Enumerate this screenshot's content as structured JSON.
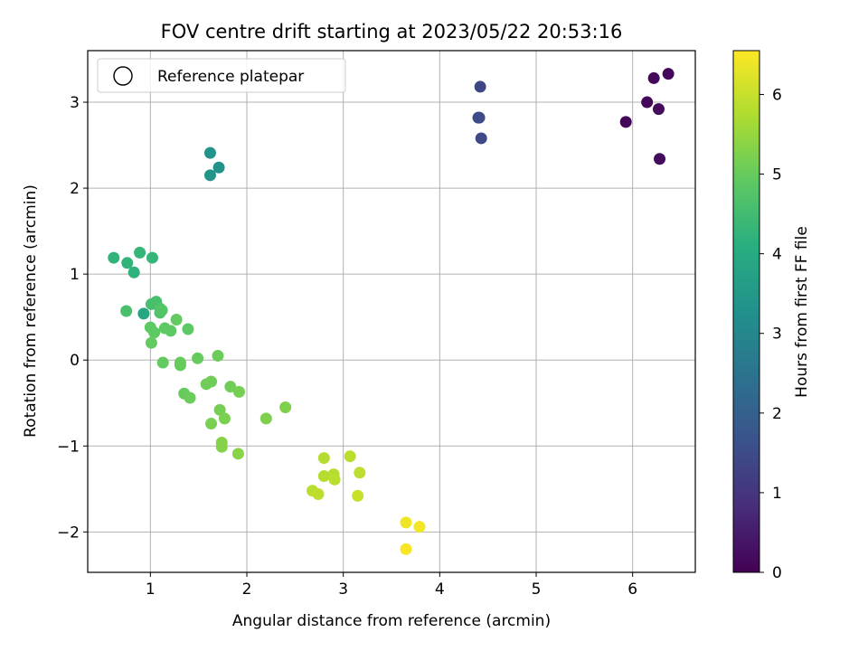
{
  "chart_data": {
    "type": "scatter",
    "title": "FOV centre drift starting at 2023/05/22 20:53:16",
    "xlabel": "Angular distance from reference (arcmin)",
    "ylabel": "Rotation from reference (arcmin)",
    "xlim": [
      0.35,
      6.65
    ],
    "ylim": [
      -2.47,
      3.6
    ],
    "xticks": [
      1,
      2,
      3,
      4,
      5,
      6
    ],
    "yticks": [
      -2,
      -1,
      0,
      1,
      2,
      3
    ],
    "grid": true,
    "legend": {
      "placement": "top-left",
      "entries": [
        "Reference platepar"
      ]
    },
    "colorbar": {
      "label": "Hours from first FF file",
      "range": [
        0,
        6.55
      ],
      "ticks": [
        0,
        1,
        2,
        3,
        4,
        5,
        6
      ],
      "colormap": "viridis"
    },
    "points": [
      {
        "x": 5.93,
        "y": 2.77,
        "c": 0.1
      },
      {
        "x": 6.15,
        "y": 3.0,
        "c": 0.1
      },
      {
        "x": 6.22,
        "y": 3.28,
        "c": 0.15
      },
      {
        "x": 6.27,
        "y": 2.92,
        "c": 0.2
      },
      {
        "x": 6.28,
        "y": 2.34,
        "c": 0.2
      },
      {
        "x": 6.37,
        "y": 3.33,
        "c": 0.1
      },
      {
        "x": 4.4,
        "y": 2.82,
        "c": 1.45
      },
      {
        "x": 4.42,
        "y": 3.18,
        "c": 1.4
      },
      {
        "x": 4.43,
        "y": 2.58,
        "c": 1.45
      },
      {
        "x": 4.41,
        "y": 2.82,
        "c": 1.5
      },
      {
        "x": 1.62,
        "y": 2.41,
        "c": 3.35
      },
      {
        "x": 1.62,
        "y": 2.15,
        "c": 3.4
      },
      {
        "x": 1.71,
        "y": 2.24,
        "c": 3.3
      },
      {
        "x": 0.62,
        "y": 1.19,
        "c": 4.25
      },
      {
        "x": 0.76,
        "y": 1.13,
        "c": 4.25
      },
      {
        "x": 0.83,
        "y": 1.02,
        "c": 4.2
      },
      {
        "x": 0.89,
        "y": 1.25,
        "c": 4.3
      },
      {
        "x": 1.02,
        "y": 1.19,
        "c": 4.3
      },
      {
        "x": 0.93,
        "y": 0.54,
        "c": 3.9
      },
      {
        "x": 0.75,
        "y": 0.57,
        "c": 4.6
      },
      {
        "x": 1.01,
        "y": 0.65,
        "c": 4.6
      },
      {
        "x": 1.06,
        "y": 0.68,
        "c": 4.6
      },
      {
        "x": 1.1,
        "y": 0.6,
        "c": 4.7
      },
      {
        "x": 1.1,
        "y": 0.55,
        "c": 4.7
      },
      {
        "x": 1.12,
        "y": 0.58,
        "c": 4.75
      },
      {
        "x": 1.0,
        "y": 0.38,
        "c": 4.9
      },
      {
        "x": 1.04,
        "y": 0.32,
        "c": 4.9
      },
      {
        "x": 1.01,
        "y": 0.2,
        "c": 4.95
      },
      {
        "x": 1.15,
        "y": 0.37,
        "c": 4.9
      },
      {
        "x": 1.21,
        "y": 0.34,
        "c": 4.9
      },
      {
        "x": 1.27,
        "y": 0.47,
        "c": 4.95
      },
      {
        "x": 1.39,
        "y": 0.36,
        "c": 4.9
      },
      {
        "x": 1.13,
        "y": -0.03,
        "c": 4.95
      },
      {
        "x": 1.31,
        "y": -0.03,
        "c": 5.0
      },
      {
        "x": 1.31,
        "y": -0.06,
        "c": 5.0
      },
      {
        "x": 1.49,
        "y": 0.02,
        "c": 5.0
      },
      {
        "x": 1.7,
        "y": 0.05,
        "c": 5.05
      },
      {
        "x": 1.35,
        "y": -0.39,
        "c": 5.0
      },
      {
        "x": 1.41,
        "y": -0.44,
        "c": 5.05
      },
      {
        "x": 1.58,
        "y": -0.28,
        "c": 5.1
      },
      {
        "x": 1.63,
        "y": -0.25,
        "c": 5.1
      },
      {
        "x": 1.83,
        "y": -0.31,
        "c": 5.1
      },
      {
        "x": 1.92,
        "y": -0.37,
        "c": 5.15
      },
      {
        "x": 1.72,
        "y": -0.58,
        "c": 5.15
      },
      {
        "x": 1.77,
        "y": -0.68,
        "c": 5.2
      },
      {
        "x": 1.63,
        "y": -0.74,
        "c": 5.2
      },
      {
        "x": 2.2,
        "y": -0.68,
        "c": 5.25
      },
      {
        "x": 2.4,
        "y": -0.55,
        "c": 5.25
      },
      {
        "x": 1.74,
        "y": -0.96,
        "c": 5.3
      },
      {
        "x": 1.74,
        "y": -1.01,
        "c": 5.3
      },
      {
        "x": 1.91,
        "y": -1.09,
        "c": 5.35
      },
      {
        "x": 2.8,
        "y": -1.14,
        "c": 5.8
      },
      {
        "x": 3.07,
        "y": -1.12,
        "c": 5.85
      },
      {
        "x": 2.8,
        "y": -1.35,
        "c": 5.8
      },
      {
        "x": 2.9,
        "y": -1.33,
        "c": 5.8
      },
      {
        "x": 2.91,
        "y": -1.39,
        "c": 5.85
      },
      {
        "x": 3.17,
        "y": -1.31,
        "c": 5.9
      },
      {
        "x": 2.68,
        "y": -1.52,
        "c": 5.85
      },
      {
        "x": 2.74,
        "y": -1.56,
        "c": 5.9
      },
      {
        "x": 3.15,
        "y": -1.58,
        "c": 6.0
      },
      {
        "x": 3.65,
        "y": -1.89,
        "c": 6.4
      },
      {
        "x": 3.79,
        "y": -1.94,
        "c": 6.45
      },
      {
        "x": 3.65,
        "y": -2.2,
        "c": 6.5
      }
    ]
  }
}
